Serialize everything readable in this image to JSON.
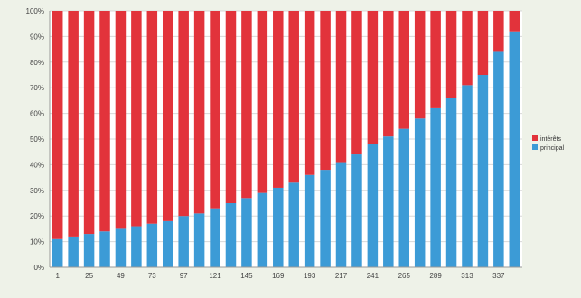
{
  "chart_data": {
    "type": "bar",
    "stacked": "percent",
    "title": "",
    "xlabel": "",
    "ylabel": "",
    "ylim": [
      0,
      100
    ],
    "yticks": [
      "0%",
      "10%",
      "20%",
      "30%",
      "40%",
      "50%",
      "60%",
      "70%",
      "80%",
      "90%",
      "100%"
    ],
    "xtick_labels": [
      "1",
      "25",
      "49",
      "73",
      "97",
      "121",
      "145",
      "169",
      "193",
      "217",
      "241",
      "265",
      "289",
      "313",
      "337"
    ],
    "categories": [
      "1",
      "13",
      "25",
      "37",
      "49",
      "61",
      "73",
      "85",
      "97",
      "109",
      "121",
      "133",
      "145",
      "157",
      "169",
      "181",
      "193",
      "205",
      "217",
      "229",
      "241",
      "253",
      "265",
      "277",
      "289",
      "301",
      "313",
      "325",
      "337",
      "349"
    ],
    "grid": true,
    "legend": "right",
    "series": [
      {
        "name": "intérêts",
        "color": "#e2333b",
        "values": [
          89,
          88,
          87,
          86,
          85,
          84,
          83,
          82,
          80,
          79,
          77,
          75,
          73,
          71,
          69,
          67,
          64,
          62,
          59,
          56,
          52,
          49,
          46,
          42,
          38,
          34,
          29,
          25,
          16,
          8
        ]
      },
      {
        "name": "principal",
        "color": "#3c9bd6",
        "values": [
          11,
          12,
          13,
          14,
          15,
          16,
          17,
          18,
          20,
          21,
          23,
          25,
          27,
          29,
          31,
          33,
          36,
          38,
          41,
          44,
          48,
          51,
          54,
          58,
          62,
          66,
          71,
          75,
          84,
          92
        ]
      }
    ]
  }
}
